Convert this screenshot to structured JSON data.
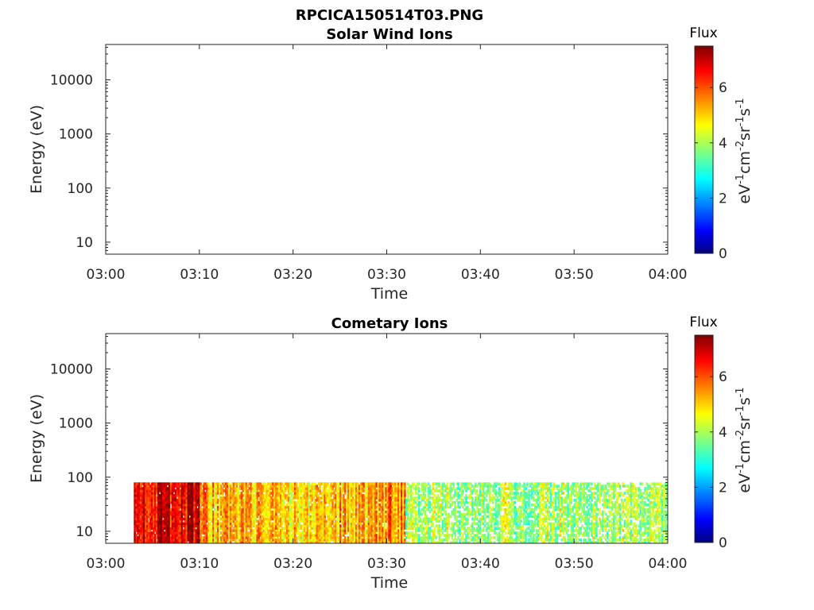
{
  "figure": {
    "title": "RPCICA150514T03.PNG"
  },
  "chart_data": [
    {
      "type": "heatmap",
      "title": "Solar Wind Ions",
      "xlabel": "Time",
      "ylabel": "Energy (eV)",
      "x_ticks": [
        "03:00",
        "03:10",
        "03:20",
        "03:30",
        "03:40",
        "03:50",
        "04:00"
      ],
      "xlim_minutes": [
        0,
        60
      ],
      "y_scale": "log",
      "ylim": [
        6,
        45000
      ],
      "y_ticks": [
        10,
        100,
        1000,
        10000
      ],
      "y_tick_labels": [
        "10",
        "100",
        "1000",
        "10000"
      ],
      "colorbar": {
        "title": "Flux",
        "label": "eV⁻¹cm⁻²sr⁻¹s⁻¹",
        "range": [
          0,
          7.5
        ],
        "ticks": [
          0,
          2,
          4,
          6
        ],
        "colormap": "jet"
      },
      "data": []
    },
    {
      "type": "heatmap",
      "title": "Cometary Ions",
      "xlabel": "Time",
      "ylabel": "Energy (eV)",
      "x_ticks": [
        "03:00",
        "03:10",
        "03:20",
        "03:30",
        "03:40",
        "03:50",
        "04:00"
      ],
      "xlim_minutes": [
        0,
        60
      ],
      "y_scale": "log",
      "ylim": [
        6,
        45000
      ],
      "y_ticks": [
        10,
        100,
        1000,
        10000
      ],
      "y_tick_labels": [
        "10",
        "100",
        "1000",
        "10000"
      ],
      "colorbar": {
        "title": "Flux",
        "label": "eV⁻¹cm⁻²sr⁻¹s⁻¹",
        "range": [
          0,
          7.5
        ],
        "ticks": [
          0,
          2,
          4,
          6
        ],
        "colormap": "jet"
      },
      "data_extent": {
        "time_start": "03:03",
        "time_end": "04:00",
        "energy_min_eV": 6,
        "energy_max_eV": 80
      },
      "flux_profile": [
        {
          "from": "03:03",
          "to": "03:10",
          "flux": 6.8
        },
        {
          "from": "03:10",
          "to": "03:17",
          "flux": 5.2
        },
        {
          "from": "03:17",
          "to": "03:24",
          "flux": 5.0
        },
        {
          "from": "03:24",
          "to": "03:30",
          "flux": 5.3
        },
        {
          "from": "03:30",
          "to": "03:32",
          "flux": 5.6
        },
        {
          "from": "03:32",
          "to": "04:00",
          "flux": 4.0
        }
      ]
    }
  ]
}
